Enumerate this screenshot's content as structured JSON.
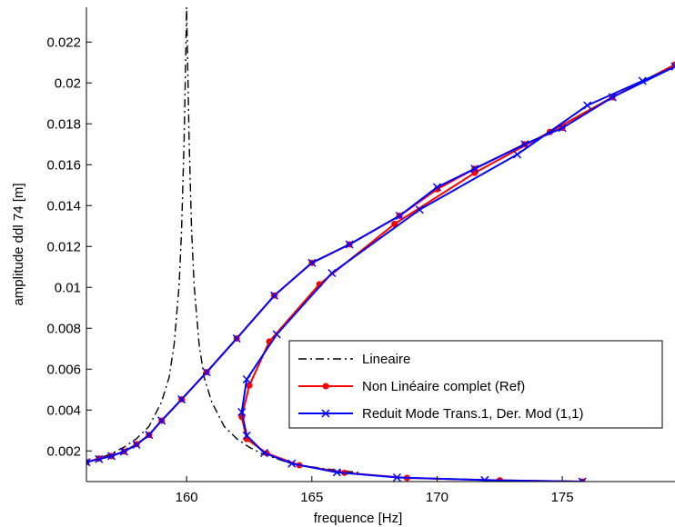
{
  "chart_data": {
    "type": "line",
    "xlabel": "frequence [Hz]",
    "ylabel": "amplitude ddl 74 [m]",
    "xlim": [
      156,
      179.5
    ],
    "ylim": [
      0.0005,
      0.0237
    ],
    "x_ticks": [
      160,
      165,
      170,
      175
    ],
    "x_tick_labels": [
      "160",
      "165",
      "170",
      "175"
    ],
    "y_ticks": [
      0.002,
      0.004,
      0.006,
      0.008,
      0.01,
      0.012,
      0.014,
      0.016,
      0.018,
      0.02,
      0.022
    ],
    "y_tick_labels": [
      "0.002",
      "0.004",
      "0.006",
      "0.008",
      "0.01",
      "0.012",
      "0.014",
      "0.016",
      "0.018",
      "0.02",
      "0.022"
    ],
    "grid": false,
    "legend_position": "lower-right",
    "series": [
      {
        "name": "Lineaire",
        "color": "#000000",
        "style": "dash-dot",
        "marker": "none",
        "x": [
          156.0,
          156.5,
          157.0,
          157.5,
          158.0,
          158.5,
          159.0,
          159.3,
          159.5,
          159.7,
          159.8,
          159.9,
          159.95,
          160.0,
          160.05,
          160.1,
          160.2,
          160.3,
          160.5,
          160.7,
          161.0,
          161.5,
          162.0,
          162.5,
          163.0,
          164.0,
          165.0,
          166.0,
          167.0
        ],
        "y": [
          0.00145,
          0.00163,
          0.00187,
          0.00218,
          0.0026,
          0.0032,
          0.0044,
          0.0056,
          0.0072,
          0.0101,
          0.0128,
          0.0172,
          0.0205,
          0.0237,
          0.0205,
          0.0172,
          0.0128,
          0.0101,
          0.0072,
          0.0056,
          0.0044,
          0.0032,
          0.0026,
          0.00218,
          0.00187,
          0.00145,
          0.00122,
          0.00105,
          0.00092
        ]
      },
      {
        "name": "Non Linéaire complet (Ref)",
        "color": "#ff0000",
        "style": "solid",
        "marker": "dot",
        "x": [
          156.0,
          156.5,
          157.0,
          157.5,
          158.0,
          158.5,
          159.0,
          159.8,
          160.8,
          162.0,
          163.5,
          165.0,
          166.5,
          168.5,
          170.0,
          171.5,
          173.5,
          175.0,
          177.0,
          179.5,
          177.0,
          174.5,
          171.5,
          168.3,
          165.3,
          163.3,
          162.5,
          162.2,
          162.4,
          163.2,
          164.5,
          166.3,
          168.8,
          172.5,
          175.8
        ],
        "y": [
          0.00145,
          0.00163,
          0.00175,
          0.00197,
          0.00233,
          0.00278,
          0.00348,
          0.00452,
          0.00585,
          0.0075,
          0.0096,
          0.0112,
          0.0121,
          0.0135,
          0.0148,
          0.0158,
          0.017,
          0.0178,
          0.0193,
          0.0209,
          0.0193,
          0.0176,
          0.0156,
          0.0131,
          0.01015,
          0.00735,
          0.0052,
          0.00366,
          0.00258,
          0.00188,
          0.0013,
          0.00093,
          0.00068,
          0.00056,
          0.0005
        ]
      },
      {
        "name": "Reduit Mode Trans.1, Der. Mod (1,1)",
        "color": "#0000ff",
        "style": "solid",
        "marker": "x",
        "x": [
          156.0,
          156.5,
          157.0,
          157.5,
          158.0,
          158.5,
          159.0,
          159.8,
          160.8,
          162.0,
          163.5,
          165.0,
          166.5,
          168.5,
          170.0,
          171.5,
          173.5,
          175.0,
          177.0,
          179.5,
          178.2,
          176.0,
          173.2,
          169.3,
          165.8,
          163.6,
          162.4,
          162.2,
          162.4,
          163.1,
          164.2,
          166.0,
          168.4,
          171.9,
          175.8
        ],
        "y": [
          0.00145,
          0.0016,
          0.00175,
          0.00197,
          0.0023,
          0.00278,
          0.00348,
          0.00452,
          0.00585,
          0.0075,
          0.0096,
          0.0112,
          0.0121,
          0.0135,
          0.0149,
          0.0158,
          0.017,
          0.0178,
          0.0193,
          0.0208,
          0.0201,
          0.0189,
          0.0165,
          0.0138,
          0.0107,
          0.0077,
          0.0055,
          0.0039,
          0.00275,
          0.0019,
          0.00138,
          0.00095,
          0.0007,
          0.00057,
          0.0005
        ]
      }
    ]
  }
}
